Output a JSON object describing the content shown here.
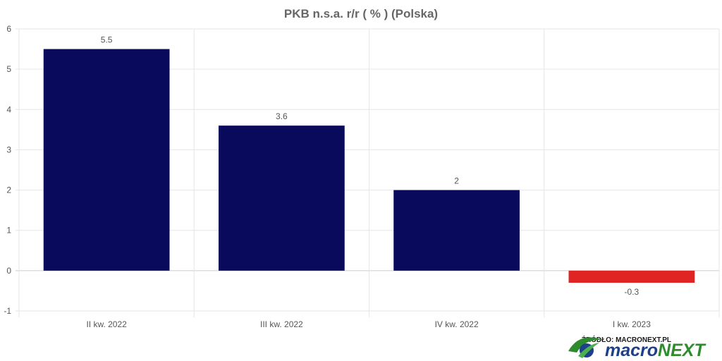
{
  "chart_data": {
    "type": "bar",
    "title": "PKB n.s.a. r/r ( % ) (Polska)",
    "categories": [
      "II kw. 2022",
      "III kw. 2022",
      "IV kw. 2022",
      "I kw. 2023"
    ],
    "values": [
      5.5,
      3.6,
      2,
      -0.3
    ],
    "data_labels": [
      "5.5",
      "3.6",
      "2",
      "-0.3"
    ],
    "y_ticks": [
      -1,
      0,
      1,
      2,
      3,
      4,
      5,
      6
    ],
    "ylim": [
      -1,
      6
    ],
    "xlabel": "",
    "ylabel": "",
    "grid": true,
    "legend": "none",
    "colors": {
      "positive": "#0a0a5c",
      "negative": "#e02424",
      "grid": "#e6e6e6",
      "axis": "#cccccc"
    }
  },
  "source": {
    "label": "ŹRÓDŁO: MACRONEXT.PL",
    "logo_text_left": "macro",
    "logo_text_right": "NEXT",
    "logo_color_left": "#1e3f8a",
    "logo_color_right": "#2e8b2e",
    "logo_icon": "globe-swoosh-icon"
  }
}
